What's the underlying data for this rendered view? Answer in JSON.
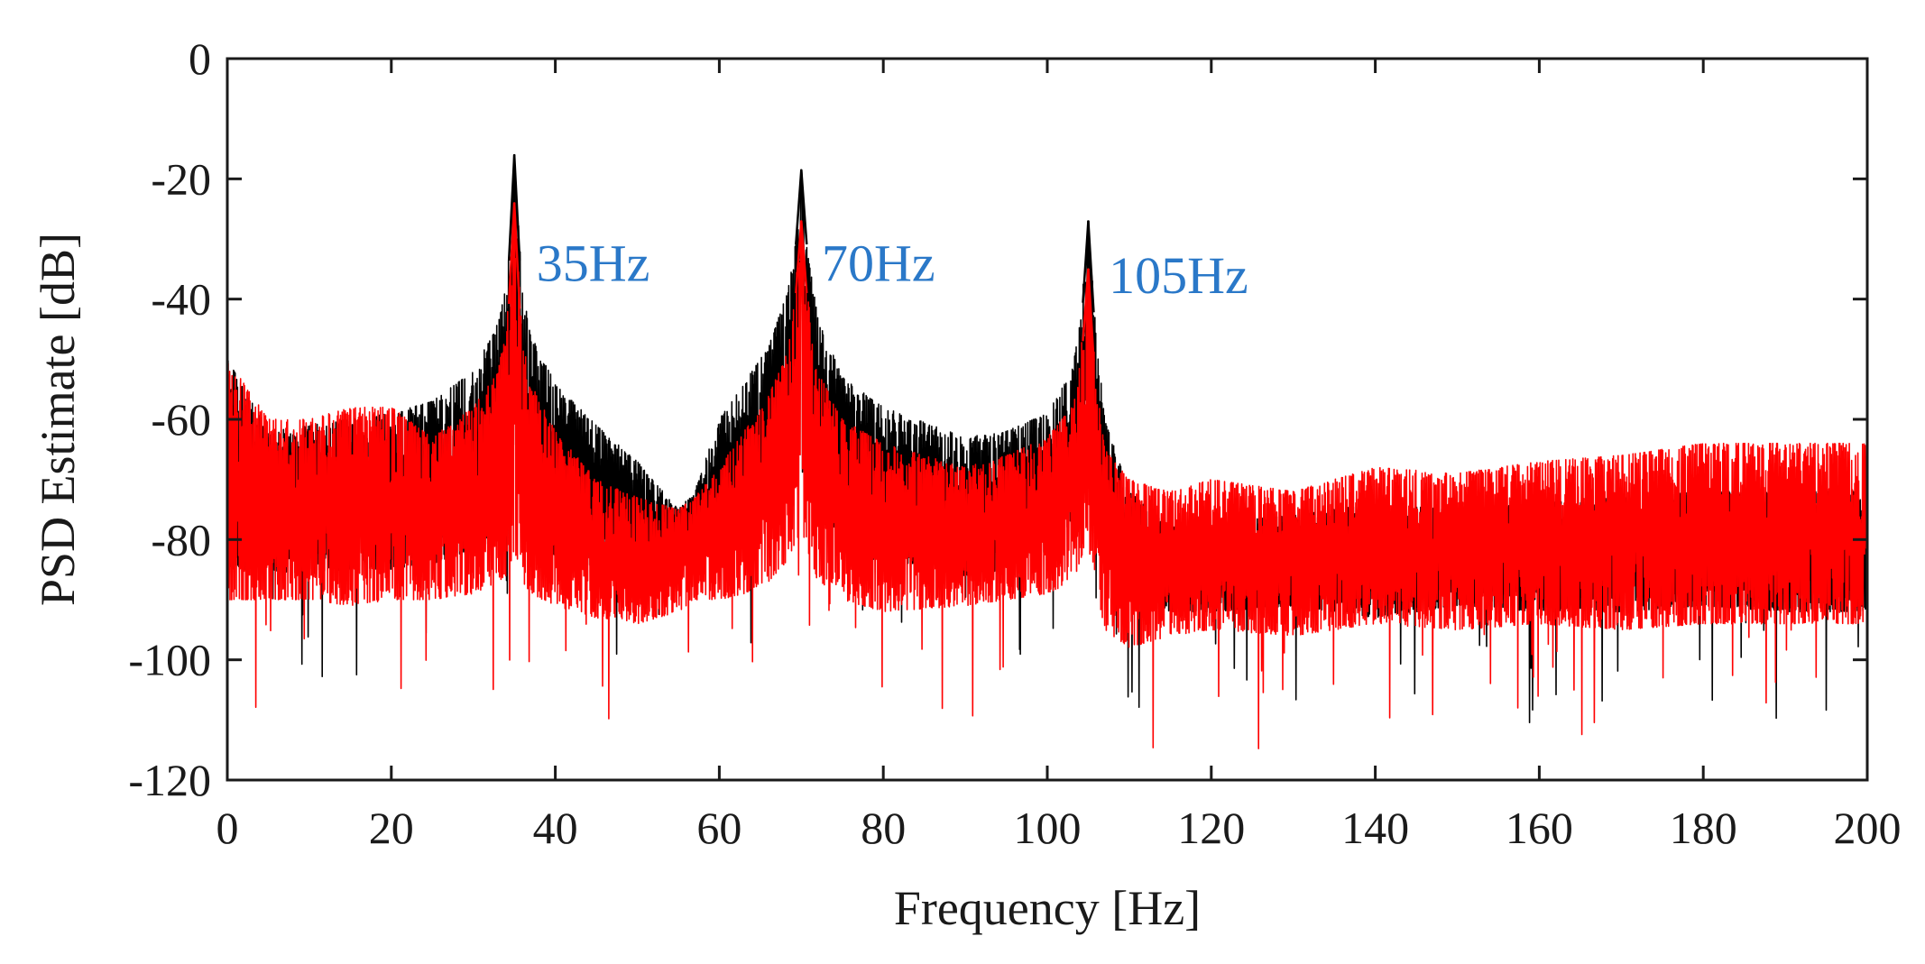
{
  "chart_data": {
    "type": "line",
    "title": "",
    "xlabel": "Frequency [Hz]",
    "ylabel": "PSD Estimate [dB]",
    "xlim": [
      0,
      200
    ],
    "ylim": [
      -120,
      0
    ],
    "xticks": [
      0,
      20,
      40,
      60,
      80,
      100,
      120,
      140,
      160,
      180,
      200
    ],
    "yticks": [
      0,
      -20,
      -40,
      -60,
      -80,
      -100,
      -120
    ],
    "xtick_labels": [
      "0",
      "20",
      "40",
      "60",
      "80",
      "100",
      "120",
      "140",
      "160",
      "180",
      "200"
    ],
    "ytick_labels": [
      "0",
      "-20",
      "-40",
      "-60",
      "-80",
      "-100",
      "-120"
    ],
    "grid": false,
    "colors": {
      "annotation": "#2a78c8",
      "axis": "#1a1a1a"
    },
    "annotations": [
      {
        "text": "35Hz",
        "x": 37.7,
        "y": -34
      },
      {
        "text": "70Hz",
        "x": 72.5,
        "y": -34
      },
      {
        "text": "105Hz",
        "x": 107.5,
        "y": -36
      }
    ],
    "series": [
      {
        "name": "series-black",
        "color": "#000000",
        "peaks": [
          {
            "freq": 35,
            "value": -16
          },
          {
            "freq": 70,
            "value": -18.5
          },
          {
            "freq": 105,
            "value": -27
          }
        ],
        "envelope": {
          "x": [
            0,
            5,
            10,
            15,
            20,
            25,
            30,
            33,
            34,
            35,
            36,
            37,
            40,
            45,
            50,
            55,
            57,
            60,
            63,
            66,
            68,
            69,
            70,
            71,
            72,
            75,
            80,
            90,
            95,
            100,
            103,
            104,
            105,
            106,
            107,
            110,
            115,
            120,
            130,
            140,
            150,
            160,
            170,
            180,
            190,
            200
          ],
          "upper": [
            -50,
            -62,
            -61,
            -60,
            -59,
            -57,
            -52,
            -44,
            -38,
            -16,
            -38,
            -46,
            -54,
            -61,
            -67,
            -75,
            -72,
            -60,
            -54,
            -48,
            -40,
            -34,
            -18.5,
            -34,
            -43,
            -53,
            -58,
            -63,
            -62,
            -59,
            -52,
            -44,
            -27,
            -46,
            -60,
            -72,
            -78,
            -77,
            -76,
            -74,
            -75,
            -74,
            -73,
            -72,
            -72,
            -72
          ],
          "lower": [
            -85,
            -85,
            -86,
            -85,
            -85,
            -84,
            -82,
            -80,
            -78,
            -70,
            -79,
            -81,
            -83,
            -85,
            -86,
            -84,
            -80,
            -80,
            -79,
            -76,
            -73,
            -70,
            -60,
            -71,
            -76,
            -81,
            -84,
            -86,
            -85,
            -82,
            -77,
            -72,
            -60,
            -76,
            -84,
            -88,
            -92,
            -92,
            -91,
            -93,
            -91,
            -92,
            -92,
            -91,
            -92,
            -92
          ]
        }
      },
      {
        "name": "series-red",
        "color": "#ff0000",
        "peaks": [
          {
            "freq": 35,
            "value": -24
          },
          {
            "freq": 70,
            "value": -27
          },
          {
            "freq": 105,
            "value": -35
          }
        ],
        "envelope": {
          "x": [
            0,
            5,
            10,
            15,
            20,
            25,
            30,
            33,
            34,
            35,
            36,
            37,
            40,
            45,
            50,
            55,
            57,
            60,
            63,
            66,
            68,
            69,
            70,
            71,
            72,
            75,
            80,
            90,
            95,
            100,
            103,
            104,
            105,
            106,
            107,
            110,
            115,
            120,
            130,
            140,
            150,
            160,
            170,
            180,
            190,
            200
          ],
          "upper": [
            -50,
            -60,
            -60,
            -58,
            -58,
            -63,
            -58,
            -52,
            -45,
            -24,
            -46,
            -54,
            -62,
            -70,
            -73,
            -75,
            -73,
            -68,
            -62,
            -56,
            -50,
            -42,
            -27,
            -42,
            -52,
            -60,
            -64,
            -68,
            -66,
            -63,
            -58,
            -50,
            -35,
            -54,
            -65,
            -70,
            -72,
            -70,
            -72,
            -68,
            -69,
            -67,
            -66,
            -64,
            -64,
            -64
          ],
          "lower": [
            -90,
            -90,
            -90,
            -91,
            -90,
            -90,
            -89,
            -87,
            -86,
            -82,
            -87,
            -89,
            -91,
            -93,
            -94,
            -92,
            -90,
            -90,
            -89,
            -87,
            -84,
            -82,
            -78,
            -83,
            -87,
            -90,
            -92,
            -91,
            -90,
            -89,
            -87,
            -84,
            -78,
            -88,
            -95,
            -98,
            -96,
            -95,
            -96,
            -94,
            -95,
            -94,
            -95,
            -94,
            -94,
            -94
          ]
        }
      }
    ]
  }
}
